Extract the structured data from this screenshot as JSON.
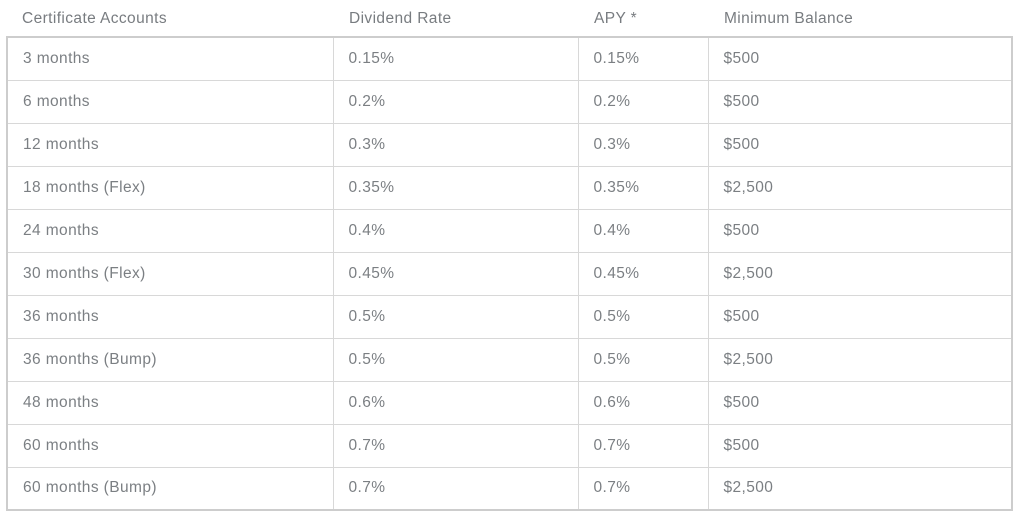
{
  "colors": {
    "background": "#ffffff",
    "text": "#7b7f83",
    "border_outer": "#cdcdcd",
    "border_inner": "#d8d8d8"
  },
  "table": {
    "headers": {
      "account": "Certificate Accounts",
      "dividend_rate": "Dividend Rate",
      "apy": "APY *",
      "minimum_balance": "Minimum Balance"
    },
    "rows": [
      [
        "3 months",
        "0.15%",
        "0.15%",
        "$500"
      ],
      [
        "6 months",
        "0.2%",
        "0.2%",
        "$500"
      ],
      [
        "12 months",
        "0.3%",
        "0.3%",
        "$500"
      ],
      [
        "18 months (Flex)",
        "0.35%",
        "0.35%",
        "$2,500"
      ],
      [
        "24 months",
        "0.4%",
        "0.4%",
        "$500"
      ],
      [
        "30 months (Flex)",
        "0.45%",
        "0.45%",
        "$2,500"
      ],
      [
        "36 months",
        "0.5%",
        "0.5%",
        "$500"
      ],
      [
        "36 months (Bump)",
        "0.5%",
        "0.5%",
        "$2,500"
      ],
      [
        "48 months",
        "0.6%",
        "0.6%",
        "$500"
      ],
      [
        "60 months",
        "0.7%",
        "0.7%",
        "$500"
      ],
      [
        "60 months (Bump)",
        "0.7%",
        "0.7%",
        "$2,500"
      ]
    ]
  }
}
